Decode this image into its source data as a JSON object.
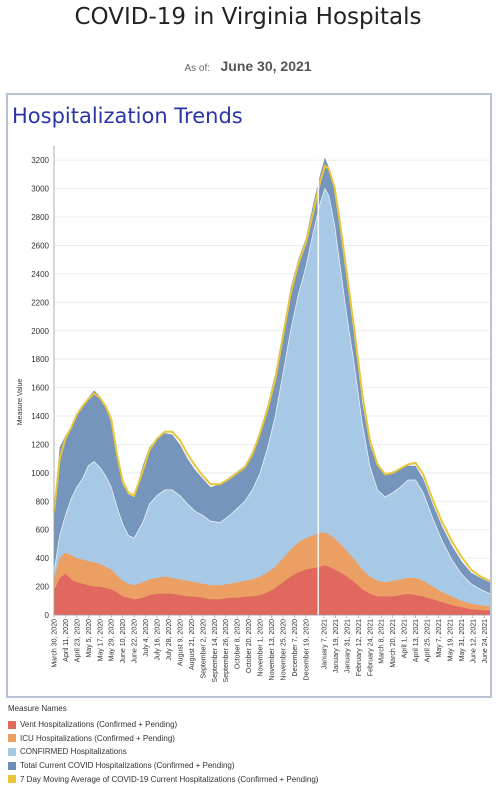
{
  "header": {
    "title": "COVID-19 in Virginia Hospitals",
    "as_of_label": "As of:",
    "as_of_date": "June 30, 2021"
  },
  "panel": {
    "title": "Hospitalization Trends"
  },
  "colors": {
    "vent": "#e0685f",
    "icu": "#ec9f63",
    "confirmed": "#a8c9e6",
    "total": "#6f8fb8",
    "avg": "#e8c53a"
  },
  "legend": {
    "title": "Measure Names",
    "items": [
      {
        "label": "Vent Hospitalizations (Confirmed + Pending)",
        "color": "#e0685f"
      },
      {
        "label": "ICU Hospitalizations (Confirmed + Pending)",
        "color": "#ec9f63"
      },
      {
        "label": "CONFIRMED Hospitalizations",
        "color": "#a8c9e6"
      },
      {
        "label": "Total Current COVID Hospitalizations (Confirmed + Pending)",
        "color": "#6f8fb8"
      },
      {
        "label": "7 Day Moving Average of COVID-19 Current Hospitalizations (Confirmed + Pending)",
        "color": "#e8c53a"
      }
    ]
  },
  "chart_data": {
    "type": "area",
    "ylabel": "Measure Value",
    "ylim": [
      0,
      3300
    ],
    "yticks": [
      0,
      200,
      400,
      600,
      800,
      1000,
      1200,
      1400,
      1600,
      1800,
      2000,
      2200,
      2400,
      2600,
      2800,
      3000,
      3200
    ],
    "grid": true,
    "legend_position": "bottom",
    "x_start": "2020-03-30",
    "x_end": "2021-06-30",
    "xtick_labels": [
      {
        "date": "2020-03-30",
        "label": "March 30, 2020"
      },
      {
        "date": "2020-04-11",
        "label": "April 11, 2020"
      },
      {
        "date": "2020-04-23",
        "label": "April 23, 2020"
      },
      {
        "date": "2020-05-05",
        "label": "May 5, 2020"
      },
      {
        "date": "2020-05-17",
        "label": "May 17, 2020"
      },
      {
        "date": "2020-05-29",
        "label": "May 29, 2020"
      },
      {
        "date": "2020-06-10",
        "label": "June 10, 2020"
      },
      {
        "date": "2020-06-22",
        "label": "June 22, 2020"
      },
      {
        "date": "2020-07-04",
        "label": "July 4, 2020"
      },
      {
        "date": "2020-07-16",
        "label": "July 16, 2020"
      },
      {
        "date": "2020-07-28",
        "label": "July 28, 2020"
      },
      {
        "date": "2020-08-09",
        "label": "August 9, 2020"
      },
      {
        "date": "2020-08-21",
        "label": "August 21, 2020"
      },
      {
        "date": "2020-09-02",
        "label": "September 2, 2020"
      },
      {
        "date": "2020-09-14",
        "label": "September 14, 2020"
      },
      {
        "date": "2020-09-26",
        "label": "September 26, 2020"
      },
      {
        "date": "2020-10-08",
        "label": "October 8, 2020"
      },
      {
        "date": "2020-10-20",
        "label": "October 20, 2020"
      },
      {
        "date": "2020-11-01",
        "label": "November 1, 2020"
      },
      {
        "date": "2020-11-13",
        "label": "November 13, 2020"
      },
      {
        "date": "2020-11-25",
        "label": "November 25, 2020"
      },
      {
        "date": "2020-12-07",
        "label": "December 7, 2020"
      },
      {
        "date": "2020-12-19",
        "label": "December 19, 2020"
      },
      {
        "date": "2021-01-07",
        "label": "January 7, 2021"
      },
      {
        "date": "2021-01-19",
        "label": "January 19, 2021"
      },
      {
        "date": "2021-01-31",
        "label": "January 31, 2021"
      },
      {
        "date": "2021-02-12",
        "label": "February 12, 2021"
      },
      {
        "date": "2021-02-24",
        "label": "February 24, 2021"
      },
      {
        "date": "2021-03-08",
        "label": "March 8, 2021"
      },
      {
        "date": "2021-03-20",
        "label": "March 20, 2021"
      },
      {
        "date": "2021-04-01",
        "label": "April 1, 2021"
      },
      {
        "date": "2021-04-13",
        "label": "April 13, 2021"
      },
      {
        "date": "2021-04-25",
        "label": "April 25, 2021"
      },
      {
        "date": "2021-05-07",
        "label": "May 7, 2021"
      },
      {
        "date": "2021-05-19",
        "label": "May 19, 2021"
      },
      {
        "date": "2021-05-31",
        "label": "May 31, 2021"
      },
      {
        "date": "2021-06-12",
        "label": "June 12, 2021"
      },
      {
        "date": "2021-06-24",
        "label": "June 24, 2021"
      }
    ],
    "series": [
      {
        "name": "Total Current COVID Hospitalizations (Confirmed + Pending)",
        "x": [
          "2020-03-30",
          "2020-04-05",
          "2020-04-11",
          "2020-04-17",
          "2020-04-23",
          "2020-04-29",
          "2020-05-05",
          "2020-05-11",
          "2020-05-17",
          "2020-05-23",
          "2020-05-29",
          "2020-06-04",
          "2020-06-10",
          "2020-06-16",
          "2020-06-22",
          "2020-07-01",
          "2020-07-08",
          "2020-07-16",
          "2020-07-24",
          "2020-08-01",
          "2020-08-09",
          "2020-08-17",
          "2020-08-25",
          "2020-09-02",
          "2020-09-10",
          "2020-09-20",
          "2020-09-30",
          "2020-10-08",
          "2020-10-16",
          "2020-10-24",
          "2020-11-01",
          "2020-11-09",
          "2020-11-17",
          "2020-11-25",
          "2020-12-03",
          "2020-12-11",
          "2020-12-19",
          "2020-12-27",
          "2021-01-03",
          "2021-01-08",
          "2021-01-12",
          "2021-01-18",
          "2021-01-24",
          "2021-01-31",
          "2021-02-08",
          "2021-02-16",
          "2021-02-24",
          "2021-03-04",
          "2021-03-12",
          "2021-03-20",
          "2021-03-28",
          "2021-04-05",
          "2021-04-13",
          "2021-04-21",
          "2021-05-01",
          "2021-05-11",
          "2021-05-21",
          "2021-05-31",
          "2021-06-10",
          "2021-06-20",
          "2021-06-30"
        ],
        "values": [
          750,
          1180,
          1260,
          1330,
          1420,
          1470,
          1530,
          1580,
          1540,
          1480,
          1350,
          1100,
          920,
          850,
          830,
          1050,
          1180,
          1240,
          1280,
          1270,
          1200,
          1100,
          1020,
          960,
          900,
          920,
          970,
          1010,
          1050,
          1150,
          1300,
          1480,
          1700,
          2000,
          2300,
          2500,
          2650,
          2900,
          3100,
          3220,
          3150,
          3000,
          2700,
          2350,
          1950,
          1500,
          1200,
          1050,
          990,
          1010,
          1030,
          1050,
          1050,
          960,
          780,
          620,
          490,
          380,
          300,
          260,
          230
        ]
      },
      {
        "name": "CONFIRMED Hospitalizations",
        "x": [
          "2020-03-30",
          "2020-04-05",
          "2020-04-11",
          "2020-04-17",
          "2020-04-23",
          "2020-04-29",
          "2020-05-05",
          "2020-05-11",
          "2020-05-17",
          "2020-05-23",
          "2020-05-29",
          "2020-06-04",
          "2020-06-10",
          "2020-06-16",
          "2020-06-22",
          "2020-07-01",
          "2020-07-08",
          "2020-07-16",
          "2020-07-24",
          "2020-08-01",
          "2020-08-09",
          "2020-08-17",
          "2020-08-25",
          "2020-09-02",
          "2020-09-10",
          "2020-09-20",
          "2020-09-30",
          "2020-10-08",
          "2020-10-16",
          "2020-10-24",
          "2020-11-01",
          "2020-11-09",
          "2020-11-17",
          "2020-11-25",
          "2020-12-03",
          "2020-12-11",
          "2020-12-19",
          "2020-12-27",
          "2021-01-03",
          "2021-01-08",
          "2021-01-12",
          "2021-01-18",
          "2021-01-24",
          "2021-01-31",
          "2021-02-08",
          "2021-02-16",
          "2021-02-24",
          "2021-03-04",
          "2021-03-12",
          "2021-03-20",
          "2021-03-28",
          "2021-04-05",
          "2021-04-13",
          "2021-04-21",
          "2021-05-01",
          "2021-05-11",
          "2021-05-21",
          "2021-05-31",
          "2021-06-10",
          "2021-06-20",
          "2021-06-30"
        ],
        "values": [
          300,
          560,
          700,
          820,
          900,
          960,
          1050,
          1080,
          1040,
          980,
          900,
          760,
          640,
          560,
          540,
          650,
          780,
          840,
          880,
          880,
          840,
          780,
          730,
          700,
          660,
          650,
          700,
          750,
          800,
          880,
          1000,
          1180,
          1400,
          1700,
          2000,
          2250,
          2450,
          2700,
          2900,
          3000,
          2950,
          2750,
          2450,
          2100,
          1750,
          1350,
          1050,
          880,
          830,
          860,
          900,
          950,
          950,
          860,
          680,
          520,
          390,
          290,
          220,
          180,
          150
        ]
      },
      {
        "name": "ICU Hospitalizations (Confirmed + Pending)",
        "x": [
          "2020-03-30",
          "2020-04-05",
          "2020-04-11",
          "2020-04-17",
          "2020-04-23",
          "2020-04-29",
          "2020-05-05",
          "2020-05-11",
          "2020-05-17",
          "2020-05-23",
          "2020-05-29",
          "2020-06-04",
          "2020-06-10",
          "2020-06-16",
          "2020-06-22",
          "2020-07-01",
          "2020-07-08",
          "2020-07-16",
          "2020-07-24",
          "2020-08-01",
          "2020-08-09",
          "2020-08-17",
          "2020-08-25",
          "2020-09-02",
          "2020-09-10",
          "2020-09-20",
          "2020-09-30",
          "2020-10-08",
          "2020-10-16",
          "2020-10-24",
          "2020-11-01",
          "2020-11-09",
          "2020-11-17",
          "2020-11-25",
          "2020-12-03",
          "2020-12-11",
          "2020-12-19",
          "2020-12-27",
          "2021-01-03",
          "2021-01-08",
          "2021-01-12",
          "2021-01-18",
          "2021-01-24",
          "2021-01-31",
          "2021-02-08",
          "2021-02-16",
          "2021-02-24",
          "2021-03-04",
          "2021-03-12",
          "2021-03-20",
          "2021-03-28",
          "2021-04-05",
          "2021-04-13",
          "2021-04-21",
          "2021-05-01",
          "2021-05-11",
          "2021-05-21",
          "2021-05-31",
          "2021-06-10",
          "2021-06-20",
          "2021-06-30"
        ],
        "values": [
          250,
          400,
          440,
          420,
          400,
          390,
          380,
          370,
          360,
          340,
          320,
          280,
          240,
          220,
          210,
          230,
          250,
          260,
          270,
          260,
          250,
          240,
          230,
          220,
          210,
          210,
          220,
          230,
          240,
          250,
          270,
          300,
          340,
          400,
          460,
          510,
          540,
          560,
          580,
          580,
          570,
          540,
          500,
          450,
          390,
          320,
          270,
          240,
          230,
          240,
          250,
          260,
          260,
          240,
          200,
          160,
          130,
          100,
          80,
          70,
          60
        ]
      },
      {
        "name": "Vent Hospitalizations (Confirmed + Pending)",
        "x": [
          "2020-03-30",
          "2020-04-05",
          "2020-04-11",
          "2020-04-17",
          "2020-04-23",
          "2020-04-29",
          "2020-05-05",
          "2020-05-11",
          "2020-05-17",
          "2020-05-23",
          "2020-05-29",
          "2020-06-04",
          "2020-06-10",
          "2020-06-16",
          "2020-06-22",
          "2020-07-01",
          "2020-07-08",
          "2020-07-16",
          "2020-07-24",
          "2020-08-01",
          "2020-08-09",
          "2020-08-17",
          "2020-08-25",
          "2020-09-02",
          "2020-09-10",
          "2020-09-20",
          "2020-09-30",
          "2020-10-08",
          "2020-10-16",
          "2020-10-24",
          "2020-11-01",
          "2020-11-09",
          "2020-11-17",
          "2020-11-25",
          "2020-12-03",
          "2020-12-11",
          "2020-12-19",
          "2020-12-27",
          "2021-01-03",
          "2021-01-08",
          "2021-01-12",
          "2021-01-18",
          "2021-01-24",
          "2021-01-31",
          "2021-02-08",
          "2021-02-16",
          "2021-02-24",
          "2021-03-04",
          "2021-03-12",
          "2021-03-20",
          "2021-03-28",
          "2021-04-05",
          "2021-04-13",
          "2021-04-21",
          "2021-05-01",
          "2021-05-11",
          "2021-05-21",
          "2021-05-31",
          "2021-06-10",
          "2021-06-20",
          "2021-06-30"
        ],
        "values": [
          170,
          260,
          290,
          250,
          230,
          220,
          210,
          200,
          200,
          190,
          180,
          160,
          130,
          120,
          110,
          120,
          140,
          150,
          150,
          150,
          140,
          130,
          130,
          120,
          110,
          110,
          120,
          120,
          130,
          130,
          140,
          160,
          190,
          230,
          270,
          300,
          320,
          330,
          340,
          350,
          340,
          320,
          300,
          270,
          230,
          180,
          150,
          130,
          130,
          130,
          140,
          150,
          140,
          130,
          110,
          90,
          70,
          55,
          40,
          35,
          30
        ]
      },
      {
        "name": "7 Day Moving Average of COVID-19 Current Hospitalizations (Confirmed + Pending)",
        "x": [
          "2020-03-30",
          "2020-04-05",
          "2020-04-11",
          "2020-04-17",
          "2020-04-23",
          "2020-04-29",
          "2020-05-05",
          "2020-05-11",
          "2020-05-17",
          "2020-05-23",
          "2020-05-29",
          "2020-06-04",
          "2020-06-10",
          "2020-06-16",
          "2020-06-22",
          "2020-07-01",
          "2020-07-08",
          "2020-07-16",
          "2020-07-24",
          "2020-08-01",
          "2020-08-09",
          "2020-08-17",
          "2020-08-25",
          "2020-09-02",
          "2020-09-10",
          "2020-09-20",
          "2020-09-30",
          "2020-10-08",
          "2020-10-16",
          "2020-10-24",
          "2020-11-01",
          "2020-11-09",
          "2020-11-17",
          "2020-11-25",
          "2020-12-03",
          "2020-12-11",
          "2020-12-19",
          "2020-12-27",
          "2021-01-03",
          "2021-01-08",
          "2021-01-12",
          "2021-01-18",
          "2021-01-24",
          "2021-01-31",
          "2021-02-08",
          "2021-02-16",
          "2021-02-24",
          "2021-03-04",
          "2021-03-12",
          "2021-03-20",
          "2021-03-28",
          "2021-04-05",
          "2021-04-13",
          "2021-04-21",
          "2021-05-01",
          "2021-05-11",
          "2021-05-21",
          "2021-05-31",
          "2021-06-10",
          "2021-06-20",
          "2021-06-30"
        ],
        "values": [
          720,
          1100,
          1240,
          1320,
          1410,
          1470,
          1520,
          1560,
          1530,
          1470,
          1380,
          1130,
          940,
          860,
          840,
          1010,
          1160,
          1240,
          1290,
          1290,
          1230,
          1130,
          1050,
          980,
          920,
          920,
          960,
          1000,
          1040,
          1130,
          1280,
          1450,
          1660,
          1960,
          2260,
          2470,
          2620,
          2840,
          3050,
          3160,
          3140,
          3010,
          2750,
          2400,
          2000,
          1560,
          1230,
          1060,
          990,
          1000,
          1030,
          1060,
          1070,
          990,
          810,
          650,
          520,
          410,
          320,
          270,
          240
        ]
      }
    ]
  }
}
